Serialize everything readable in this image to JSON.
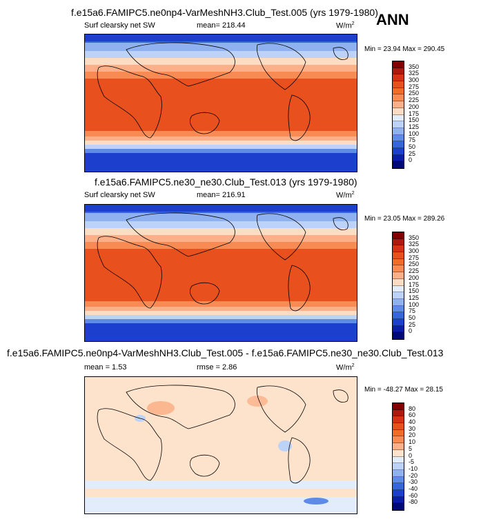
{
  "season": "ANN",
  "panels": [
    {
      "title": "f.e15a6.FAMIPC5.ne0np4-VarMeshNH3.Club_Test.005 (yrs 1979-1980)",
      "left_label": "Surf clearsky net SW",
      "center_label": "mean= 218.44",
      "units_label": "W/m",
      "units_exp": "2",
      "minmax": "Min = 23.94 Max = 290.45",
      "colorbar": {
        "labels": [
          "350",
          "325",
          "300",
          "275",
          "250",
          "225",
          "200",
          "175",
          "150",
          "125",
          "100",
          "75",
          "50",
          "25",
          "0"
        ],
        "colors": [
          "#7f0000",
          "#b2170f",
          "#d6321a",
          "#e8501e",
          "#f36b2b",
          "#f88b54",
          "#fbb089",
          "#fddcc4",
          "#e3ecfa",
          "#bdd2f7",
          "#8fb1ef",
          "#5d8be6",
          "#3566da",
          "#1c3fcd",
          "#0a1ea6",
          "#00087a"
        ]
      }
    },
    {
      "title": "f.e15a6.FAMIPC5.ne30_ne30.Club_Test.013 (yrs 1979-1980)",
      "left_label": "Surf clearsky net SW",
      "center_label": "mean= 216.91",
      "units_label": "W/m",
      "units_exp": "2",
      "minmax": "Min = 23.05 Max = 289.26",
      "colorbar": {
        "labels": [
          "350",
          "325",
          "300",
          "275",
          "250",
          "225",
          "200",
          "175",
          "150",
          "125",
          "100",
          "75",
          "50",
          "25",
          "0"
        ],
        "colors": [
          "#7f0000",
          "#b2170f",
          "#d6321a",
          "#e8501e",
          "#f36b2b",
          "#f88b54",
          "#fbb089",
          "#fddcc4",
          "#e3ecfa",
          "#bdd2f7",
          "#8fb1ef",
          "#5d8be6",
          "#3566da",
          "#1c3fcd",
          "#0a1ea6",
          "#00087a"
        ]
      }
    },
    {
      "title": "f.e15a6.FAMIPC5.ne0np4-VarMeshNH3.Club_Test.005 - f.e15a6.FAMIPC5.ne30_ne30.Club_Test.013",
      "left_label": "mean = 1.53",
      "center_label": "rmse = 2.86",
      "units_label": "W/m",
      "units_exp": "2",
      "minmax": "Min = -48.27 Max = 28.15",
      "colorbar": {
        "labels": [
          "80",
          "60",
          "40",
          "30",
          "20",
          "10",
          "5",
          "0",
          "-5",
          "-10",
          "-20",
          "-30",
          "-40",
          "-60",
          "-80"
        ],
        "colors": [
          "#7f0000",
          "#b2170f",
          "#d6321a",
          "#e8501e",
          "#f36b2b",
          "#f88b54",
          "#fbb089",
          "#fde2cc",
          "#e3ecfa",
          "#bdd2f7",
          "#8fb1ef",
          "#5d8be6",
          "#3566da",
          "#1c3fcd",
          "#0a1ea6",
          "#00087a"
        ]
      }
    }
  ],
  "chart_data": [
    {
      "type": "heatmap",
      "title": "f.e15a6.FAMIPC5.ne0np4-VarMeshNH3.Club_Test.005 (yrs 1979-1980)",
      "variable": "Surf clearsky net SW",
      "units": "W/m2",
      "mean": 218.44,
      "min": 23.94,
      "max": 290.45,
      "contour_levels": [
        0,
        25,
        50,
        75,
        100,
        125,
        150,
        175,
        200,
        225,
        250,
        275,
        300,
        325,
        350
      ]
    },
    {
      "type": "heatmap",
      "title": "f.e15a6.FAMIPC5.ne30_ne30.Club_Test.013 (yrs 1979-1980)",
      "variable": "Surf clearsky net SW",
      "units": "W/m2",
      "mean": 216.91,
      "min": 23.05,
      "max": 289.26,
      "contour_levels": [
        0,
        25,
        50,
        75,
        100,
        125,
        150,
        175,
        200,
        225,
        250,
        275,
        300,
        325,
        350
      ]
    },
    {
      "type": "heatmap",
      "title": "f.e15a6.FAMIPC5.ne0np4-VarMeshNH3.Club_Test.005 - f.e15a6.FAMIPC5.ne30_ne30.Club_Test.013",
      "units": "W/m2",
      "mean": 1.53,
      "rmse": 2.86,
      "min": -48.27,
      "max": 28.15,
      "contour_levels": [
        -80,
        -60,
        -40,
        -30,
        -20,
        -10,
        -5,
        0,
        5,
        10,
        20,
        30,
        40,
        60,
        80
      ]
    }
  ]
}
